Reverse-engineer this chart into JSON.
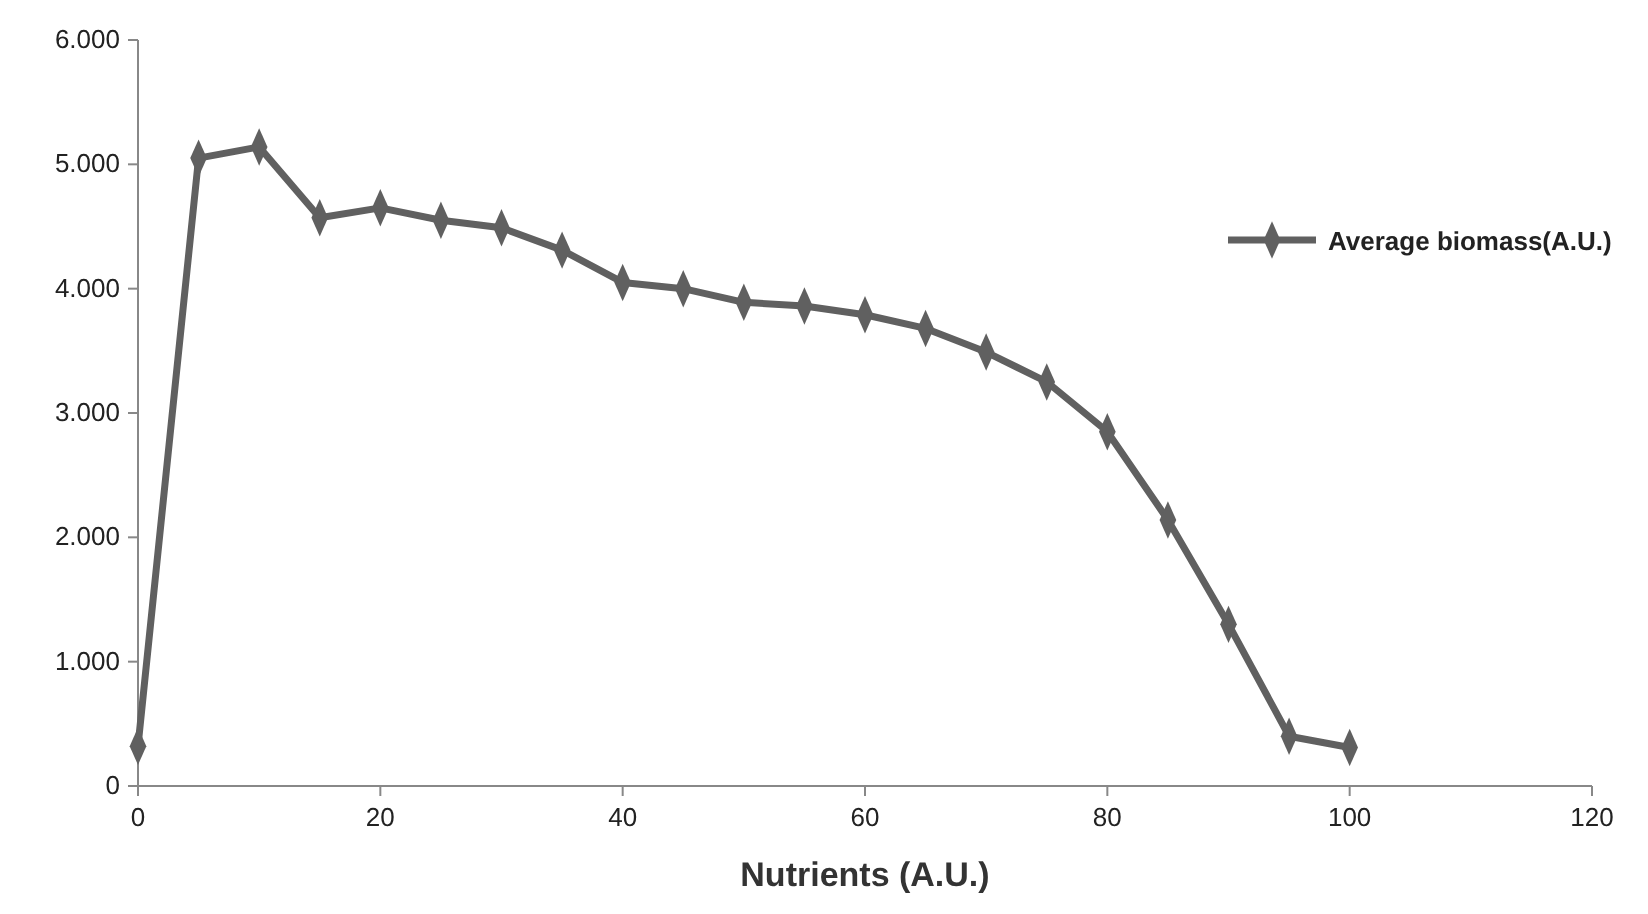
{
  "chart_data": {
    "type": "line",
    "xlabel": "Nutrients (A.U.)",
    "x": [
      0,
      5,
      10,
      15,
      20,
      25,
      30,
      35,
      40,
      45,
      50,
      55,
      60,
      65,
      70,
      75,
      80,
      85,
      90,
      95,
      100
    ],
    "series": [
      {
        "name": "Average biomass(A.U.)",
        "color": "#606060",
        "values": [
          320,
          5050,
          5140,
          4570,
          4650,
          4550,
          4490,
          4310,
          4050,
          4000,
          3890,
          3860,
          3790,
          3680,
          3490,
          3250,
          2850,
          2140,
          1300,
          400,
          310
        ]
      }
    ],
    "xlim": [
      0,
      120
    ],
    "xticks": [
      0,
      20,
      40,
      60,
      80,
      100,
      120
    ],
    "ylim": [
      0,
      6000
    ],
    "yticks": [
      {
        "value": 0,
        "label": "0"
      },
      {
        "value": 1000,
        "label": "1.000"
      },
      {
        "value": 2000,
        "label": "2.000"
      },
      {
        "value": 3000,
        "label": "3.000"
      },
      {
        "value": 4000,
        "label": "4.000"
      },
      {
        "value": 5000,
        "label": "5.000"
      },
      {
        "value": 6000,
        "label": "6.000"
      }
    ],
    "grid": false,
    "legend": "right",
    "marker": "diamond",
    "line_style": "solid"
  }
}
